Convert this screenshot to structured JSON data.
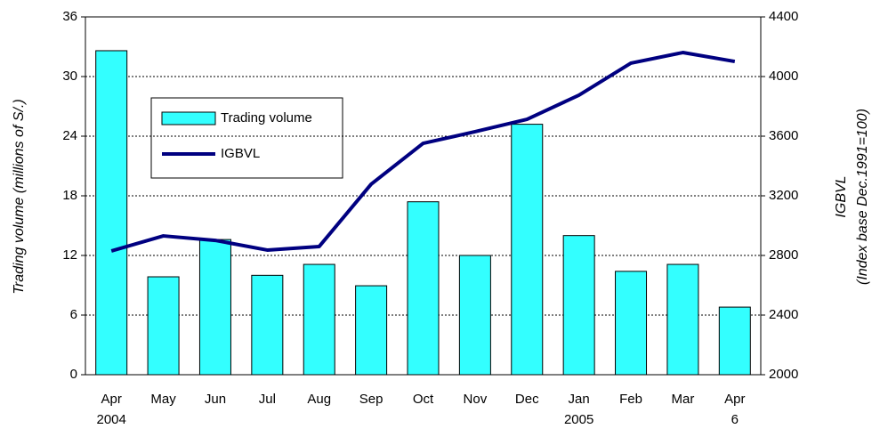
{
  "chart_data": {
    "type": "bar",
    "categories": [
      "Apr",
      "May",
      "Jun",
      "Jul",
      "Aug",
      "Sep",
      "Oct",
      "Nov",
      "Dec",
      "Jan",
      "Feb",
      "Mar",
      "Apr"
    ],
    "category_sublabels": [
      "2004",
      null,
      null,
      null,
      null,
      null,
      null,
      null,
      null,
      "2005",
      null,
      null,
      "6"
    ],
    "ylabel": "Trading volume (millions of S/.)",
    "y2label": [
      "IGBVL",
      "(Index base Dec.1991=100)"
    ],
    "ylim": [
      0,
      36
    ],
    "yticks": [
      0,
      6,
      12,
      18,
      24,
      30,
      36
    ],
    "y2lim": [
      2000,
      4400
    ],
    "y2ticks": [
      2000,
      2400,
      2800,
      3200,
      3600,
      4000,
      4400
    ],
    "grid": true,
    "series": [
      {
        "name": "Trading volume",
        "type": "bar",
        "color": "#33ffff",
        "values": [
          32.6,
          9.85,
          13.6,
          10.0,
          11.1,
          8.95,
          17.4,
          12.0,
          25.2,
          14.0,
          10.4,
          11.1,
          6.8
        ]
      },
      {
        "name": "IGBVL",
        "type": "line",
        "axis": "y2",
        "color": "#000080",
        "values": [
          2830,
          2931,
          2901,
          2836,
          2860,
          3278,
          3552,
          3630,
          3713,
          3875,
          4090,
          4161,
          4101
        ]
      }
    ]
  }
}
